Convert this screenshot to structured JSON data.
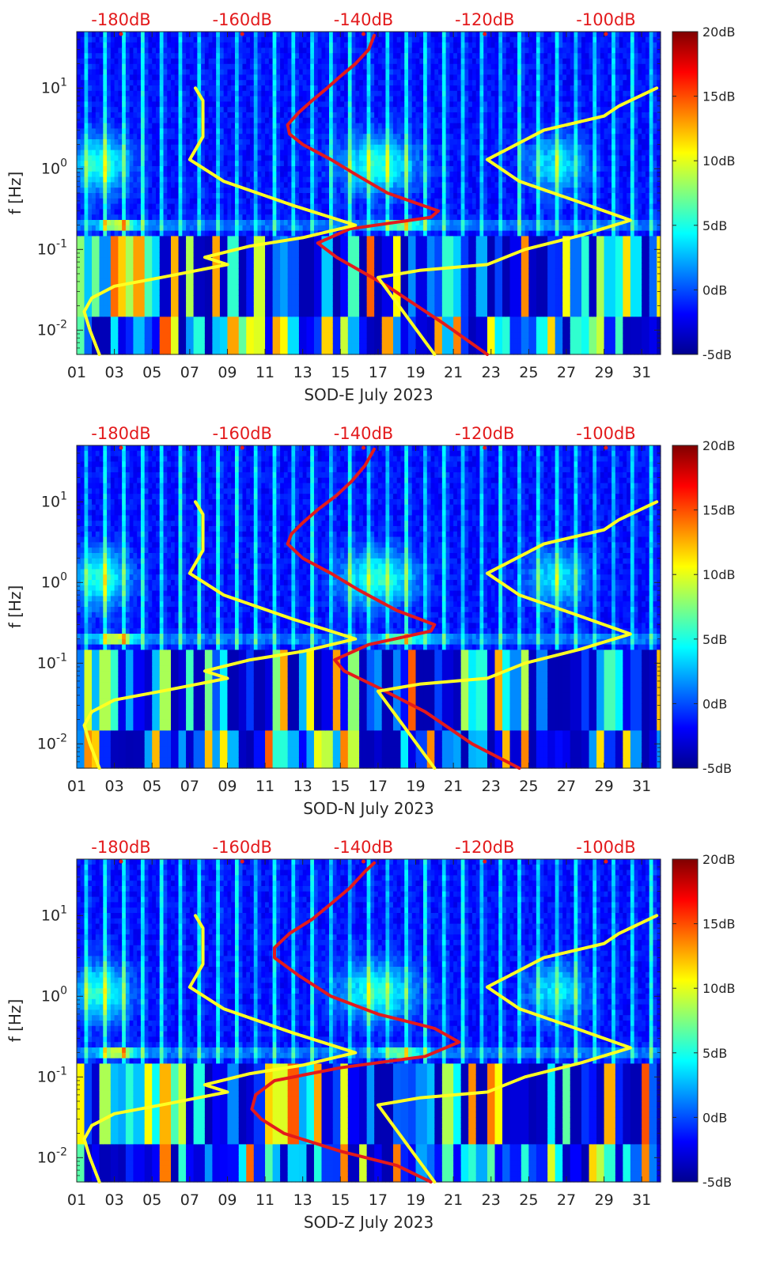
{
  "figure": {
    "colorbar_ticks": [
      "20dB",
      "15dB",
      "10dB",
      "5dB",
      "0dB",
      "-5dB"
    ],
    "colorbar_range": [
      -5,
      20
    ],
    "colormap": "jet",
    "curve_colors": {
      "red": "#e31a1c",
      "yellow": "#ffff22"
    }
  },
  "chart_data": [
    {
      "type": "heatmap",
      "title": "",
      "xlabel": "SOD-E July 2023",
      "ylabel": "f [Hz]",
      "x_ticks": [
        "01",
        "03",
        "05",
        "07",
        "09",
        "11",
        "13",
        "15",
        "17",
        "19",
        "21",
        "23",
        "25",
        "27",
        "29",
        "31"
      ],
      "y_ticks": [
        "10^-2",
        "10^-1",
        "10^0",
        "10^1"
      ],
      "y_scale": "log",
      "ylim": [
        0.005,
        50
      ],
      "xlim": [
        1,
        32
      ],
      "top_axis_labels": [
        "-180dB",
        "-160dB",
        "-140dB",
        "-120dB",
        "-100dB"
      ],
      "colorbar_label_range": [
        -5,
        20
      ],
      "series": [
        {
          "color": "red",
          "points": [
            [
              22.8,
              0.005
            ],
            [
              20.5,
              0.012
            ],
            [
              17.5,
              0.035
            ],
            [
              14.8,
              0.08
            ],
            [
              13.8,
              0.12
            ],
            [
              15.5,
              0.18
            ],
            [
              19.8,
              0.25
            ],
            [
              20.2,
              0.3
            ],
            [
              17.5,
              0.5
            ],
            [
              16.0,
              0.8
            ],
            [
              14.5,
              1.3
            ],
            [
              13.0,
              2.0
            ],
            [
              12.3,
              2.7
            ],
            [
              12.2,
              3.5
            ],
            [
              12.8,
              5.0
            ],
            [
              13.5,
              7.0
            ],
            [
              14.3,
              10.0
            ],
            [
              15.0,
              14.0
            ],
            [
              15.8,
              20.0
            ],
            [
              16.5,
              30.0
            ],
            [
              16.8,
              45.0
            ]
          ]
        },
        {
          "color": "yellow",
          "points": [
            [
              2.2,
              0.005
            ],
            [
              1.7,
              0.01
            ],
            [
              1.4,
              0.017
            ],
            [
              1.8,
              0.025
            ],
            [
              3.0,
              0.035
            ],
            [
              5.5,
              0.045
            ],
            [
              9.0,
              0.065
            ],
            [
              7.8,
              0.08
            ],
            [
              10.2,
              0.11
            ],
            [
              13.0,
              0.14
            ],
            [
              15.8,
              0.2
            ],
            [
              12.5,
              0.35
            ],
            [
              8.8,
              0.7
            ],
            [
              7.0,
              1.3
            ],
            [
              7.7,
              2.5
            ],
            [
              7.7,
              7.0
            ],
            [
              7.3,
              10.0
            ]
          ]
        },
        {
          "color": "yellow",
          "points": [
            [
              20.0,
              0.005
            ],
            [
              18.5,
              0.015
            ],
            [
              17.0,
              0.045
            ],
            [
              19.2,
              0.055
            ],
            [
              22.8,
              0.065
            ],
            [
              24.8,
              0.1
            ],
            [
              27.8,
              0.15
            ],
            [
              30.4,
              0.23
            ],
            [
              27.5,
              0.4
            ],
            [
              24.5,
              0.7
            ],
            [
              22.8,
              1.3
            ],
            [
              25.8,
              3.0
            ],
            [
              29.0,
              4.5
            ],
            [
              29.8,
              6.0
            ],
            [
              31.8,
              10.0
            ]
          ]
        }
      ]
    },
    {
      "type": "heatmap",
      "title": "",
      "xlabel": "SOD-N July 2023",
      "ylabel": "f [Hz]",
      "x_ticks": [
        "01",
        "03",
        "05",
        "07",
        "09",
        "11",
        "13",
        "15",
        "17",
        "19",
        "21",
        "23",
        "25",
        "27",
        "29",
        "31"
      ],
      "y_ticks": [
        "10^-2",
        "10^-1",
        "10^0",
        "10^1"
      ],
      "y_scale": "log",
      "ylim": [
        0.005,
        50
      ],
      "xlim": [
        1,
        32
      ],
      "top_axis_labels": [
        "-180dB",
        "-160dB",
        "-140dB",
        "-120dB",
        "-100dB"
      ],
      "colorbar_label_range": [
        -5,
        20
      ],
      "series": [
        {
          "color": "red",
          "points": [
            [
              24.5,
              0.005
            ],
            [
              22.0,
              0.01
            ],
            [
              19.5,
              0.025
            ],
            [
              17.0,
              0.05
            ],
            [
              15.2,
              0.08
            ],
            [
              14.7,
              0.11
            ],
            [
              16.5,
              0.17
            ],
            [
              19.8,
              0.25
            ],
            [
              20.0,
              0.3
            ],
            [
              18.0,
              0.45
            ],
            [
              16.0,
              0.8
            ],
            [
              14.5,
              1.3
            ],
            [
              13.0,
              2.0
            ],
            [
              12.2,
              3.0
            ],
            [
              12.4,
              4.0
            ],
            [
              13.0,
              5.5
            ],
            [
              13.8,
              8.0
            ],
            [
              14.8,
              12.0
            ],
            [
              15.6,
              18.0
            ],
            [
              16.3,
              28.0
            ],
            [
              16.8,
              45.0
            ]
          ]
        },
        {
          "color": "yellow",
          "points": [
            [
              2.2,
              0.005
            ],
            [
              1.7,
              0.01
            ],
            [
              1.4,
              0.017
            ],
            [
              1.8,
              0.025
            ],
            [
              3.0,
              0.035
            ],
            [
              5.5,
              0.045
            ],
            [
              9.0,
              0.065
            ],
            [
              7.8,
              0.08
            ],
            [
              10.2,
              0.11
            ],
            [
              13.0,
              0.14
            ],
            [
              15.8,
              0.2
            ],
            [
              12.5,
              0.35
            ],
            [
              8.8,
              0.7
            ],
            [
              7.0,
              1.3
            ],
            [
              7.7,
              2.5
            ],
            [
              7.7,
              7.0
            ],
            [
              7.3,
              10.0
            ]
          ]
        },
        {
          "color": "yellow",
          "points": [
            [
              20.0,
              0.005
            ],
            [
              18.5,
              0.015
            ],
            [
              17.0,
              0.045
            ],
            [
              19.2,
              0.055
            ],
            [
              22.8,
              0.065
            ],
            [
              24.8,
              0.1
            ],
            [
              27.8,
              0.15
            ],
            [
              30.4,
              0.23
            ],
            [
              27.5,
              0.4
            ],
            [
              24.5,
              0.7
            ],
            [
              22.8,
              1.3
            ],
            [
              25.8,
              3.0
            ],
            [
              29.0,
              4.5
            ],
            [
              29.8,
              6.0
            ],
            [
              31.8,
              10.0
            ]
          ]
        }
      ]
    },
    {
      "type": "heatmap",
      "title": "",
      "xlabel": "SOD-Z July 2023",
      "ylabel": "f [Hz]",
      "x_ticks": [
        "01",
        "03",
        "05",
        "07",
        "09",
        "11",
        "13",
        "15",
        "17",
        "19",
        "21",
        "23",
        "25",
        "27",
        "29",
        "31"
      ],
      "y_ticks": [
        "10^-2",
        "10^-1",
        "10^0",
        "10^1"
      ],
      "y_scale": "log",
      "ylim": [
        0.005,
        50
      ],
      "xlim": [
        1,
        32
      ],
      "top_axis_labels": [
        "-180dB",
        "-160dB",
        "-140dB",
        "-120dB",
        "-100dB"
      ],
      "colorbar_label_range": [
        -5,
        20
      ],
      "series": [
        {
          "color": "red",
          "points": [
            [
              19.8,
              0.005
            ],
            [
              18.0,
              0.008
            ],
            [
              15.0,
              0.012
            ],
            [
              12.0,
              0.02
            ],
            [
              10.8,
              0.03
            ],
            [
              10.3,
              0.04
            ],
            [
              10.5,
              0.06
            ],
            [
              11.5,
              0.09
            ],
            [
              15.0,
              0.13
            ],
            [
              19.5,
              0.18
            ],
            [
              21.3,
              0.27
            ],
            [
              20.0,
              0.4
            ],
            [
              17.0,
              0.6
            ],
            [
              14.5,
              1.0
            ],
            [
              12.8,
              1.8
            ],
            [
              11.5,
              3.0
            ],
            [
              11.5,
              4.0
            ],
            [
              12.3,
              6.0
            ],
            [
              13.5,
              9.0
            ],
            [
              14.5,
              14.0
            ],
            [
              15.5,
              22.0
            ],
            [
              16.3,
              35.0
            ],
            [
              16.8,
              45.0
            ]
          ]
        },
        {
          "color": "yellow",
          "points": [
            [
              2.2,
              0.005
            ],
            [
              1.7,
              0.01
            ],
            [
              1.4,
              0.017
            ],
            [
              1.8,
              0.025
            ],
            [
              3.0,
              0.035
            ],
            [
              5.5,
              0.045
            ],
            [
              9.0,
              0.065
            ],
            [
              7.8,
              0.08
            ],
            [
              10.2,
              0.11
            ],
            [
              13.0,
              0.14
            ],
            [
              15.8,
              0.2
            ],
            [
              12.5,
              0.35
            ],
            [
              8.8,
              0.7
            ],
            [
              7.0,
              1.3
            ],
            [
              7.7,
              2.5
            ],
            [
              7.7,
              7.0
            ],
            [
              7.3,
              10.0
            ]
          ]
        },
        {
          "color": "yellow",
          "points": [
            [
              20.0,
              0.005
            ],
            [
              18.5,
              0.015
            ],
            [
              17.0,
              0.045
            ],
            [
              19.2,
              0.055
            ],
            [
              22.8,
              0.065
            ],
            [
              24.8,
              0.1
            ],
            [
              27.8,
              0.15
            ],
            [
              30.4,
              0.23
            ],
            [
              27.5,
              0.4
            ],
            [
              24.5,
              0.7
            ],
            [
              22.8,
              1.3
            ],
            [
              25.8,
              3.0
            ],
            [
              29.0,
              4.5
            ],
            [
              29.8,
              6.0
            ],
            [
              31.8,
              10.0
            ]
          ]
        }
      ]
    }
  ]
}
